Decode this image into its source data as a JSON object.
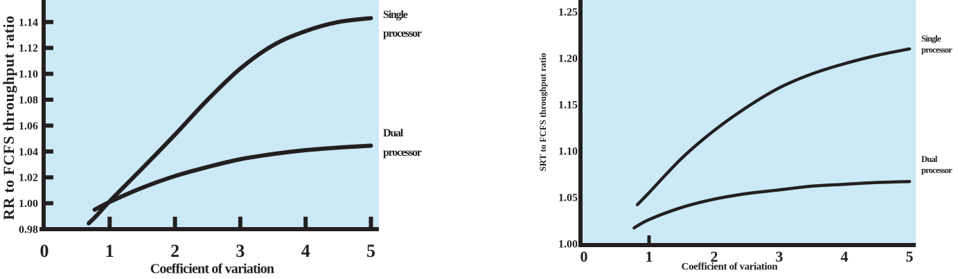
{
  "colors": {
    "page_background": "#ffffff",
    "plot_background": "#cbe9f7",
    "ink": "#231f20"
  },
  "chart_data": [
    {
      "id": "rr",
      "type": "line",
      "title": "",
      "xlabel": "Coefficient of variation",
      "ylabel": "RR to FCFS throughput ratio",
      "xlim": [
        0,
        5.15
      ],
      "ylim": [
        0.98,
        1.157
      ],
      "grid": false,
      "legend_position": "right-outside",
      "x_ticks": [
        0,
        1,
        2,
        3,
        4,
        5
      ],
      "x_tick_labels": [
        "0",
        "1",
        "2",
        "3",
        "4",
        "5"
      ],
      "y_ticks": [
        0.98,
        1.0,
        1.02,
        1.04,
        1.06,
        1.08,
        1.1,
        1.12,
        1.14
      ],
      "y_tick_labels": [
        "0.98",
        "1.00",
        "1.02",
        "1.04",
        "1.06",
        "1.08",
        "1.10",
        "1.12",
        "1.14"
      ],
      "series": [
        {
          "name": "Single processor",
          "label_lines": [
            "Single",
            "processor"
          ],
          "points": [
            [
              0.68,
              0.9845
            ],
            [
              0.8,
              0.9905
            ],
            [
              1.0,
              1.0015
            ],
            [
              1.5,
              1.027
            ],
            [
              2.0,
              1.053
            ],
            [
              2.5,
              1.08
            ],
            [
              3.0,
              1.104
            ],
            [
              3.5,
              1.122
            ],
            [
              4.0,
              1.133
            ],
            [
              4.5,
              1.14
            ],
            [
              5.0,
              1.143
            ]
          ]
        },
        {
          "name": "Dual processor",
          "label_lines": [
            "Dual",
            "processor"
          ],
          "points": [
            [
              0.77,
              0.995
            ],
            [
              1.0,
              1.001
            ],
            [
              1.5,
              1.012
            ],
            [
              2.0,
              1.021
            ],
            [
              2.5,
              1.028
            ],
            [
              3.0,
              1.034
            ],
            [
              3.5,
              1.038
            ],
            [
              4.0,
              1.041
            ],
            [
              4.5,
              1.043
            ],
            [
              5.0,
              1.0445
            ]
          ]
        }
      ]
    },
    {
      "id": "srt",
      "type": "line",
      "title": "",
      "xlabel": "Coefficient of variation",
      "ylabel": "SRT to FCFS throughput ratio",
      "xlim": [
        0,
        5.1
      ],
      "ylim": [
        1.0,
        1.262
      ],
      "grid": false,
      "legend_position": "right-outside",
      "x_ticks": [
        0,
        1,
        2,
        3,
        4,
        5
      ],
      "x_tick_labels": [
        "0",
        "1",
        "2",
        "3",
        "4",
        "5"
      ],
      "y_ticks": [
        1.0,
        1.05,
        1.1,
        1.15,
        1.2,
        1.25
      ],
      "y_tick_labels": [
        "1.00",
        "1.05",
        "1.10",
        "1.15",
        "1.20",
        "1.25"
      ],
      "series": [
        {
          "name": "Single processor",
          "label_lines": [
            "Single",
            "processor"
          ],
          "points": [
            [
              0.82,
              1.042
            ],
            [
              1.0,
              1.055
            ],
            [
              1.5,
              1.092
            ],
            [
              2.0,
              1.122
            ],
            [
              2.5,
              1.147
            ],
            [
              3.0,
              1.168
            ],
            [
              3.5,
              1.183
            ],
            [
              4.0,
              1.194
            ],
            [
              4.5,
              1.203
            ],
            [
              5.0,
              1.21
            ]
          ]
        },
        {
          "name": "Dual processor",
          "label_lines": [
            "Dual",
            "processor"
          ],
          "points": [
            [
              0.77,
              1.017
            ],
            [
              1.0,
              1.026
            ],
            [
              1.5,
              1.039
            ],
            [
              2.0,
              1.048
            ],
            [
              2.5,
              1.054
            ],
            [
              3.0,
              1.058
            ],
            [
              3.5,
              1.062
            ],
            [
              4.0,
              1.064
            ],
            [
              4.5,
              1.066
            ],
            [
              5.0,
              1.067
            ]
          ]
        }
      ]
    }
  ]
}
